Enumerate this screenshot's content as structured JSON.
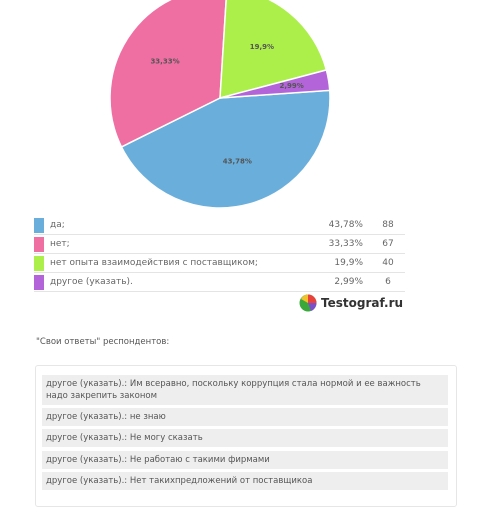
{
  "chart_data": {
    "type": "pie",
    "slices": [
      {
        "label": "да;",
        "percent_label": "43,78%",
        "value": 43.78,
        "count": "88",
        "color": "#6aaedb"
      },
      {
        "label": "нет;",
        "percent_label": "33,33%",
        "value": 33.33,
        "count": "67",
        "color": "#ef6fa3"
      },
      {
        "label": "нет опыта взаимодействия с поставщиком;",
        "percent_label": "19,9%",
        "value": 19.9,
        "count": "40",
        "color": "#acee4a"
      },
      {
        "label": "другое (указать).",
        "percent_label": "2,99%",
        "value": 2.99,
        "count": "6",
        "color": "#b264d8"
      }
    ]
  },
  "brand": {
    "name": "Testograf.ru"
  },
  "comments": {
    "title": "\"Свои ответы\" респондентов:",
    "items": [
      "другое (указать).: Им всеравно, поскольку коррупция стала нормой и ее важность надо закрепить законом",
      "другое (указать).: не знаю",
      "другое (указать).: Не могу сказать",
      "другое (указать).: Не работаю с такими фирмами",
      "другое (указать).: Нет такихпредложений от поставщикоа"
    ]
  }
}
